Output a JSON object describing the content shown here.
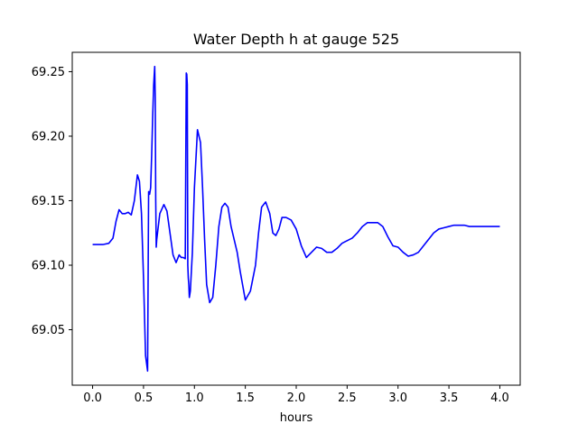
{
  "chart_data": {
    "type": "line",
    "title": "Water Depth h at gauge 525",
    "xlabel": "hours",
    "ylabel": "",
    "xlim": [
      -0.2,
      4.2
    ],
    "ylim": [
      69.007,
      69.265
    ],
    "xticks": [
      {
        "value": 0.0,
        "label": "0.0"
      },
      {
        "value": 0.5,
        "label": "0.5"
      },
      {
        "value": 1.0,
        "label": "1.0"
      },
      {
        "value": 1.5,
        "label": "1.5"
      },
      {
        "value": 2.0,
        "label": "2.0"
      },
      {
        "value": 2.5,
        "label": "2.5"
      },
      {
        "value": 3.0,
        "label": "3.0"
      },
      {
        "value": 3.5,
        "label": "3.5"
      },
      {
        "value": 4.0,
        "label": "4.0"
      }
    ],
    "yticks": [
      {
        "value": 69.05,
        "label": "69.05"
      },
      {
        "value": 69.1,
        "label": "69.10"
      },
      {
        "value": 69.15,
        "label": "69.15"
      },
      {
        "value": 69.2,
        "label": "69.20"
      },
      {
        "value": 69.25,
        "label": "69.25"
      }
    ],
    "grid": false,
    "series": [
      {
        "color": "#0000ff",
        "x": [
          0.0,
          0.1,
          0.16,
          0.2,
          0.23,
          0.26,
          0.29,
          0.32,
          0.35,
          0.38,
          0.41,
          0.44,
          0.46,
          0.48,
          0.5,
          0.52,
          0.54,
          0.55,
          0.56,
          0.57,
          0.58,
          0.59,
          0.6,
          0.61,
          0.615,
          0.62,
          0.625,
          0.63,
          0.66,
          0.7,
          0.73,
          0.76,
          0.79,
          0.82,
          0.85,
          0.87,
          0.89,
          0.91,
          0.92,
          0.925,
          0.93,
          0.935,
          0.94,
          0.945,
          0.95,
          0.96,
          0.98,
          1.0,
          1.03,
          1.06,
          1.08,
          1.1,
          1.12,
          1.15,
          1.18,
          1.21,
          1.24,
          1.27,
          1.3,
          1.33,
          1.36,
          1.39,
          1.42,
          1.45,
          1.5,
          1.55,
          1.6,
          1.63,
          1.66,
          1.7,
          1.74,
          1.77,
          1.8,
          1.83,
          1.86,
          1.9,
          1.95,
          2.0,
          2.05,
          2.1,
          2.15,
          2.2,
          2.25,
          2.3,
          2.35,
          2.4,
          2.45,
          2.5,
          2.55,
          2.6,
          2.65,
          2.7,
          2.75,
          2.8,
          2.85,
          2.9,
          2.95,
          3.0,
          3.05,
          3.1,
          3.15,
          3.2,
          3.25,
          3.3,
          3.35,
          3.4,
          3.45,
          3.5,
          3.55,
          3.6,
          3.65,
          3.7,
          3.75,
          3.8,
          3.85,
          3.9,
          3.95,
          4.0
        ],
        "values": [
          69.116,
          69.116,
          69.117,
          69.121,
          69.134,
          69.143,
          69.14,
          69.14,
          69.141,
          69.139,
          69.15,
          69.17,
          69.165,
          69.14,
          69.09,
          69.03,
          69.018,
          69.157,
          69.155,
          69.16,
          69.185,
          69.215,
          69.24,
          69.254,
          69.23,
          69.15,
          69.114,
          69.12,
          69.14,
          69.147,
          69.142,
          69.125,
          69.108,
          69.102,
          69.108,
          69.106,
          69.106,
          69.105,
          69.249,
          69.248,
          69.24,
          69.1,
          69.09,
          69.085,
          69.075,
          69.08,
          69.11,
          69.16,
          69.205,
          69.195,
          69.16,
          69.12,
          69.085,
          69.071,
          69.075,
          69.1,
          69.13,
          69.145,
          69.148,
          69.145,
          69.13,
          69.12,
          69.11,
          69.095,
          69.073,
          69.08,
          69.1,
          69.125,
          69.145,
          69.149,
          69.14,
          69.125,
          69.123,
          69.128,
          69.137,
          69.137,
          69.135,
          69.128,
          69.115,
          69.106,
          69.11,
          69.114,
          69.113,
          69.11,
          69.11,
          69.113,
          69.117,
          69.119,
          69.121,
          69.125,
          69.13,
          69.133,
          69.133,
          69.133,
          69.13,
          69.122,
          69.115,
          69.114,
          69.11,
          69.107,
          69.108,
          69.11,
          69.115,
          69.12,
          69.125,
          69.128,
          69.129,
          69.13,
          69.131,
          69.131,
          69.131,
          69.13,
          69.13,
          69.13,
          69.13,
          69.13,
          69.13,
          69.13
        ]
      }
    ]
  }
}
